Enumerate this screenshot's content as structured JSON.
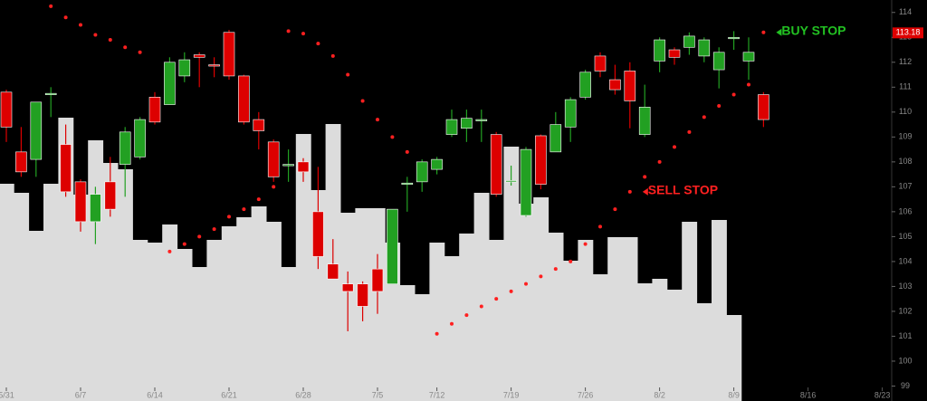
{
  "chart_data": {
    "type": "candlestick",
    "categories": [
      "5/31",
      null,
      null,
      null,
      null,
      "6/7",
      null,
      null,
      null,
      null,
      "6/14",
      null,
      null,
      null,
      null,
      "6/21",
      null,
      null,
      null,
      null,
      "6/28",
      null,
      null,
      null,
      null,
      "7/5",
      null,
      null,
      null,
      "7/12",
      null,
      null,
      null,
      null,
      "7/19",
      null,
      null,
      null,
      null,
      "7/26",
      null,
      null,
      null,
      null,
      "8/2",
      null,
      null,
      null,
      null,
      "8/9",
      null,
      null,
      null,
      null,
      "8/16",
      null,
      null,
      null,
      null,
      "8/23"
    ],
    "open": [
      110.8,
      108.4,
      108.1,
      110.7,
      108.7,
      107.2,
      105.6,
      107.2,
      107.9,
      108.2,
      110.6,
      110.3,
      111.45,
      112.3,
      111.9,
      113.2,
      111.45,
      109.7,
      108.8,
      107.85,
      108.0,
      106.0,
      103.9,
      103.1,
      103.1,
      103.7,
      103.1,
      107.1,
      107.2,
      107.7,
      109.1,
      109.35,
      109.65,
      109.1,
      107.2,
      105.85,
      109.05,
      108.4,
      109.4,
      110.6,
      112.25,
      111.3,
      111.65,
      109.1,
      112.05,
      112.5,
      112.6,
      112.25,
      111.7,
      112.95,
      112.05,
      110.7,
      null,
      null,
      null,
      null,
      null,
      null,
      null,
      null
    ],
    "high": [
      110.9,
      109.4,
      110.4,
      111.0,
      109.5,
      107.3,
      107.0,
      108.2,
      109.4,
      109.8,
      110.8,
      112.2,
      112.4,
      112.4,
      112.2,
      113.3,
      111.5,
      110.0,
      108.9,
      108.5,
      108.15,
      107.8,
      104.9,
      103.6,
      103.2,
      104.3,
      106.1,
      107.4,
      108.1,
      108.2,
      110.1,
      110.1,
      110.1,
      109.2,
      107.85,
      108.6,
      109.1,
      110.0,
      110.6,
      111.7,
      112.4,
      111.9,
      112.0,
      111.1,
      113.0,
      112.6,
      113.2,
      113.0,
      112.6,
      113.25,
      113.0,
      110.8,
      null,
      null,
      null,
      null,
      null,
      null,
      null,
      null
    ],
    "low": [
      108.8,
      107.4,
      107.4,
      109.8,
      106.6,
      105.2,
      104.7,
      105.8,
      106.6,
      108.1,
      109.5,
      110.3,
      111.2,
      111.0,
      111.4,
      111.3,
      109.5,
      108.5,
      107.2,
      107.2,
      107.2,
      103.7,
      103.3,
      101.2,
      101.6,
      101.9,
      103.1,
      106.0,
      106.8,
      107.5,
      109.0,
      108.8,
      108.8,
      106.6,
      107.05,
      105.8,
      106.9,
      108.4,
      108.8,
      110.5,
      111.4,
      110.7,
      109.35,
      109.0,
      111.6,
      111.9,
      112.3,
      112.0,
      110.95,
      112.5,
      111.3,
      109.4,
      null,
      null,
      null,
      null,
      null,
      null,
      null,
      null
    ],
    "close": [
      109.4,
      107.6,
      110.4,
      110.75,
      106.8,
      105.6,
      106.7,
      106.1,
      109.2,
      109.7,
      109.6,
      112.0,
      112.1,
      112.2,
      111.85,
      111.45,
      109.6,
      109.25,
      107.4,
      107.9,
      107.6,
      104.2,
      103.3,
      102.8,
      102.2,
      102.8,
      106.1,
      107.15,
      108.0,
      108.1,
      109.7,
      109.75,
      109.7,
      106.7,
      107.25,
      108.5,
      107.1,
      109.5,
      110.5,
      111.6,
      111.65,
      110.9,
      110.45,
      110.2,
      112.9,
      112.2,
      113.05,
      112.9,
      112.4,
      113.0,
      112.4,
      109.7,
      null,
      null,
      null,
      null,
      null,
      null,
      null,
      null
    ],
    "volume": [
      240,
      230,
      188,
      240,
      313,
      228,
      288,
      263,
      256,
      178,
      175,
      195,
      168,
      148,
      178,
      193,
      203,
      215,
      198,
      148,
      295,
      233,
      306,
      208,
      213,
      213,
      175,
      128,
      118,
      175,
      160,
      185,
      230,
      178,
      281,
      218,
      225,
      186,
      155,
      178,
      140,
      181,
      181,
      130,
      135,
      123,
      198,
      108,
      200,
      95,
      null,
      null,
      null,
      null,
      null,
      null,
      null,
      null,
      null,
      null
    ],
    "volume_ylim": [
      0,
      443
    ],
    "sar": [
      null,
      null,
      null,
      114.25,
      113.8,
      113.5,
      113.1,
      112.9,
      112.6,
      112.4,
      null,
      104.4,
      104.7,
      105.0,
      105.3,
      105.8,
      106.1,
      106.5,
      107.0,
      113.25,
      113.15,
      112.75,
      112.25,
      111.5,
      110.45,
      109.7,
      109.0,
      108.4,
      null,
      101.1,
      101.5,
      101.85,
      102.2,
      102.5,
      102.8,
      103.1,
      103.4,
      103.7,
      104.0,
      104.7,
      105.4,
      106.1,
      106.8,
      107.4,
      108.0,
      108.6,
      109.2,
      109.8,
      110.25,
      110.7,
      111.1,
      113.2,
      null,
      null,
      null,
      null,
      null,
      null,
      null,
      null
    ],
    "up_color": "#22a022",
    "down_color": "#dd0000",
    "volume_color": "#dcdcdc",
    "sar_color": "#ff2020",
    "last_price": 113.18,
    "annotations": [
      {
        "text": "BUY STOP",
        "color": "#22c022",
        "index": 51,
        "value": 113.2
      },
      {
        "text": "SELL STOP",
        "color": "#ff2020",
        "index": 42,
        "value": 106.8
      }
    ],
    "ylim": [
      98.4,
      114.5
    ],
    "yticks": [
      99,
      100,
      101,
      102,
      103,
      104,
      105,
      106,
      107,
      108,
      109,
      110,
      111,
      112,
      113,
      114
    ]
  }
}
